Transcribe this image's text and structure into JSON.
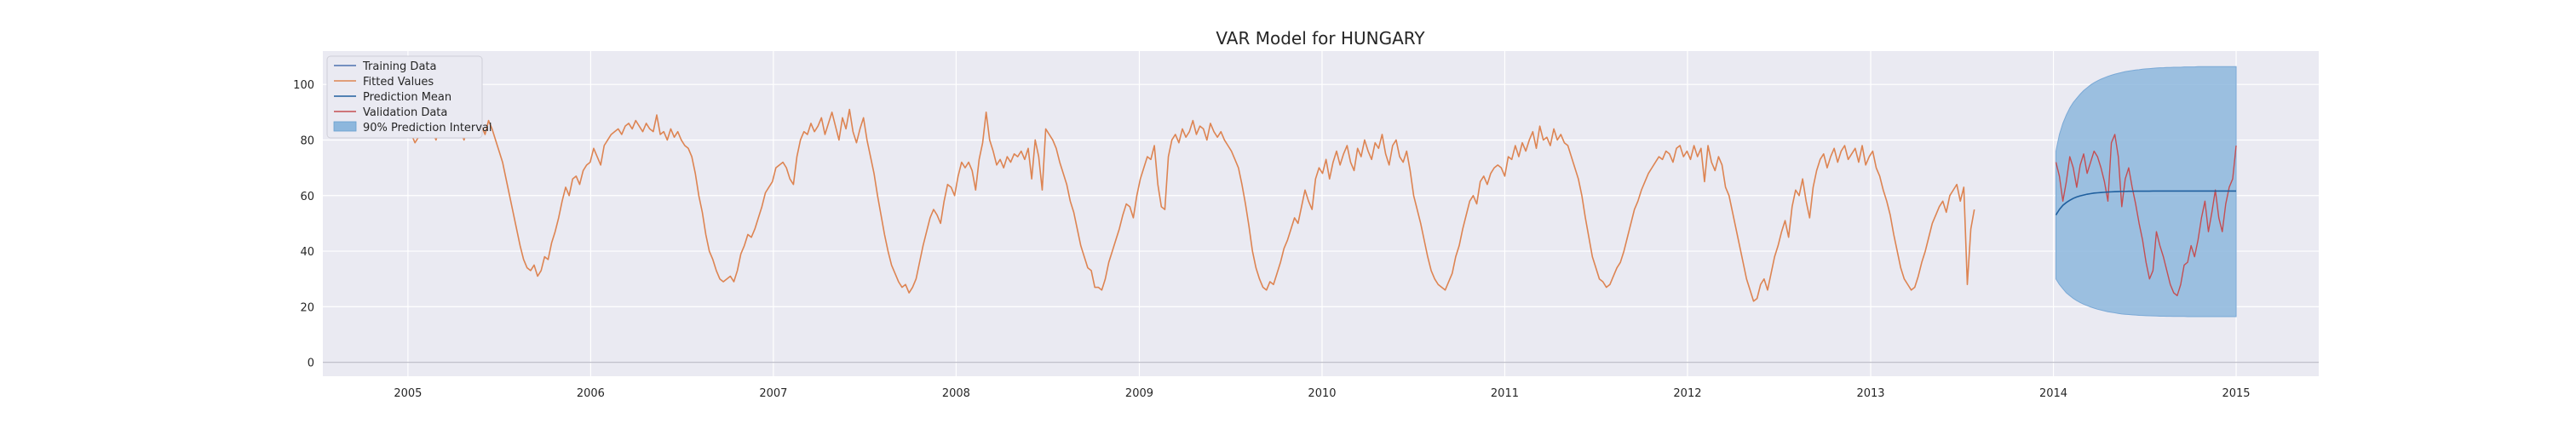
{
  "chart_data": {
    "type": "line",
    "title": "VAR Model for HUNGARY",
    "xlabel": "",
    "ylabel": "",
    "xlim": [
      "2004-07-15",
      "2015-06-15"
    ],
    "ylim": [
      -5,
      112
    ],
    "x_ticks": [
      "2005",
      "2006",
      "2007",
      "2008",
      "2009",
      "2010",
      "2011",
      "2012",
      "2013",
      "2014",
      "2015"
    ],
    "y_ticks": [
      0,
      20,
      40,
      60,
      80,
      100
    ],
    "grid": true,
    "legend_position": "top-left",
    "legend": [
      "Training Data",
      "Fitted Values",
      "Prediction Mean",
      "Validation Data",
      "90% Prediction Interval"
    ],
    "colors": {
      "training": "#4c72b0",
      "fitted": "#dd8452",
      "prediction_mean": "#1f5f9e",
      "validation": "#c44e52",
      "interval_fill": "#8db7dd",
      "background": "#eaeaf2",
      "grid": "#ffffff"
    },
    "fitted_start": "2005-01-01",
    "fitted_step_days": 7,
    "fitted_values": [
      86,
      82,
      79,
      81,
      84,
      86,
      85,
      83,
      80,
      84,
      87,
      85,
      82,
      88,
      86,
      83,
      80,
      84,
      88,
      86,
      89,
      85,
      82,
      87,
      84,
      80,
      76,
      72,
      66,
      60,
      54,
      48,
      42,
      37,
      34,
      33,
      35,
      31,
      33,
      38,
      37,
      43,
      47,
      52,
      58,
      63,
      60,
      66,
      67,
      64,
      69,
      71,
      72,
      77,
      74,
      71,
      78,
      80,
      82,
      83,
      84,
      82,
      85,
      86,
      84,
      87,
      85,
      83,
      86,
      84,
      83,
      89,
      82,
      83,
      80,
      84,
      81,
      83,
      80,
      78,
      77,
      74,
      68,
      60,
      54,
      46,
      40,
      37,
      33,
      30,
      29,
      30,
      31,
      29,
      33,
      39,
      42,
      46,
      45,
      48,
      52,
      56,
      61,
      63,
      65,
      70,
      71,
      72,
      70,
      66,
      64,
      74,
      80,
      83,
      82,
      86,
      83,
      85,
      88,
      82,
      86,
      90,
      85,
      80,
      88,
      84,
      91,
      83,
      79,
      84,
      88,
      80,
      74,
      68,
      60,
      53,
      46,
      40,
      35,
      32,
      29,
      27,
      28,
      25,
      27,
      30,
      36,
      42,
      47,
      52,
      55,
      53,
      50,
      58,
      64,
      63,
      60,
      67,
      72,
      70,
      72,
      69,
      62,
      73,
      79,
      90,
      80,
      76,
      71,
      73,
      70,
      74,
      72,
      75,
      74,
      76,
      73,
      77,
      66,
      80,
      74,
      62,
      84,
      82,
      80,
      77,
      72,
      68,
      64,
      58,
      54,
      48,
      42,
      38,
      34,
      33,
      27,
      27,
      26,
      30,
      36,
      40,
      44,
      48,
      53,
      57,
      56,
      52,
      60,
      66,
      70,
      74,
      73,
      78,
      64,
      56,
      55,
      74,
      80,
      82,
      79,
      84,
      81,
      83,
      87,
      82,
      85,
      84,
      80,
      86,
      83,
      81,
      83,
      80,
      78,
      76,
      73,
      70,
      64,
      57,
      49,
      40,
      34,
      30,
      27,
      26,
      29,
      28,
      32,
      36,
      41,
      44,
      48,
      52,
      50,
      56,
      62,
      58,
      55,
      66,
      70,
      68,
      73,
      66,
      72,
      76,
      71,
      75,
      78,
      72,
      69,
      77,
      74,
      80,
      76,
      73,
      79,
      77,
      82,
      75,
      71,
      78,
      80,
      74,
      72,
      76,
      69,
      60,
      55,
      50,
      44,
      38,
      33,
      30,
      28,
      27,
      26,
      29,
      32,
      38,
      42,
      48,
      53,
      58,
      60,
      57,
      65,
      67,
      64,
      68,
      70,
      71,
      70,
      67,
      74,
      73,
      78,
      74,
      79,
      76,
      80,
      83,
      77,
      85,
      80,
      81,
      78,
      84,
      80,
      82,
      79,
      78,
      74,
      70,
      66,
      60,
      52,
      45,
      38,
      34,
      30,
      29,
      27,
      28,
      31,
      34,
      36,
      40,
      45,
      50,
      55,
      58,
      62,
      65,
      68,
      70,
      72,
      74,
      73,
      76,
      75,
      72,
      77,
      78,
      74,
      76,
      73,
      78,
      74,
      77,
      65,
      78,
      72,
      69,
      74,
      71,
      63,
      60,
      54,
      48,
      42,
      36,
      30,
      26,
      22,
      23,
      28,
      30,
      26,
      32,
      38,
      42,
      47,
      51,
      45,
      56,
      62,
      60,
      66,
      58,
      52,
      63,
      69,
      73,
      75,
      70,
      74,
      77,
      72,
      76,
      78,
      73,
      75,
      77,
      72,
      78,
      71,
      74,
      76,
      70,
      67,
      62,
      58,
      53,
      46,
      40,
      34,
      30,
      28,
      26,
      27,
      31,
      36,
      40,
      45,
      50,
      53,
      56,
      58,
      54,
      60,
      62,
      64,
      58,
      63,
      28,
      48,
      55
    ]
  },
  "forecast": {
    "start": "2014-01-06",
    "end": "2015-01-01",
    "step_days": 7,
    "prediction_mean": [
      53,
      55,
      56.5,
      57.5,
      58.3,
      59,
      59.5,
      59.9,
      60.2,
      60.5,
      60.7,
      60.9,
      61,
      61.1,
      61.2,
      61.3,
      61.35,
      61.4,
      61.45,
      61.5,
      61.5,
      61.55,
      61.55,
      61.6,
      61.6,
      61.6,
      61.6,
      61.6,
      61.65,
      61.65,
      61.65,
      61.65,
      61.65,
      61.65,
      61.65,
      61.65,
      61.65,
      61.65,
      61.65,
      61.65,
      61.65,
      61.65,
      61.65,
      61.65,
      61.65,
      61.65,
      61.65,
      61.65,
      61.65,
      61.65,
      61.65,
      61.65,
      61.65
    ],
    "upper": [
      76,
      82,
      86,
      89,
      91.5,
      93.5,
      95,
      96.5,
      97.8,
      98.8,
      99.8,
      100.6,
      101.3,
      101.9,
      102.4,
      102.9,
      103.3,
      103.7,
      104,
      104.3,
      104.6,
      104.8,
      105,
      105.2,
      105.3,
      105.5,
      105.6,
      105.7,
      105.8,
      105.9,
      106,
      106,
      106.1,
      106.1,
      106.2,
      106.2,
      106.2,
      106.3,
      106.3,
      106.3,
      106.3,
      106.4,
      106.4,
      106.4,
      106.4,
      106.4,
      106.4,
      106.4,
      106.4,
      106.4,
      106.4,
      106.4,
      106.4
    ],
    "lower": [
      30,
      28,
      26.5,
      25,
      24,
      23,
      22.2,
      21.5,
      20.9,
      20.4,
      19.9,
      19.5,
      19.1,
      18.8,
      18.5,
      18.2,
      18,
      17.8,
      17.6,
      17.4,
      17.3,
      17.2,
      17.1,
      17,
      16.9,
      16.85,
      16.8,
      16.75,
      16.7,
      16.65,
      16.6,
      16.6,
      16.55,
      16.55,
      16.5,
      16.5,
      16.5,
      16.5,
      16.45,
      16.45,
      16.45,
      16.45,
      16.45,
      16.45,
      16.45,
      16.45,
      16.45,
      16.45,
      16.45,
      16.45,
      16.45,
      16.45,
      16.45
    ],
    "validation": [
      72,
      67,
      58,
      65,
      74,
      70,
      63,
      71,
      75,
      68,
      72,
      76,
      74,
      70,
      65,
      58,
      79,
      82,
      74,
      56,
      66,
      70,
      63,
      57,
      50,
      44,
      36,
      30,
      33,
      47,
      42,
      38,
      33,
      28,
      25,
      24,
      28,
      35,
      36,
      42,
      38,
      44,
      52,
      58,
      47,
      54,
      62,
      52,
      47,
      57,
      63,
      66,
      78
    ]
  }
}
